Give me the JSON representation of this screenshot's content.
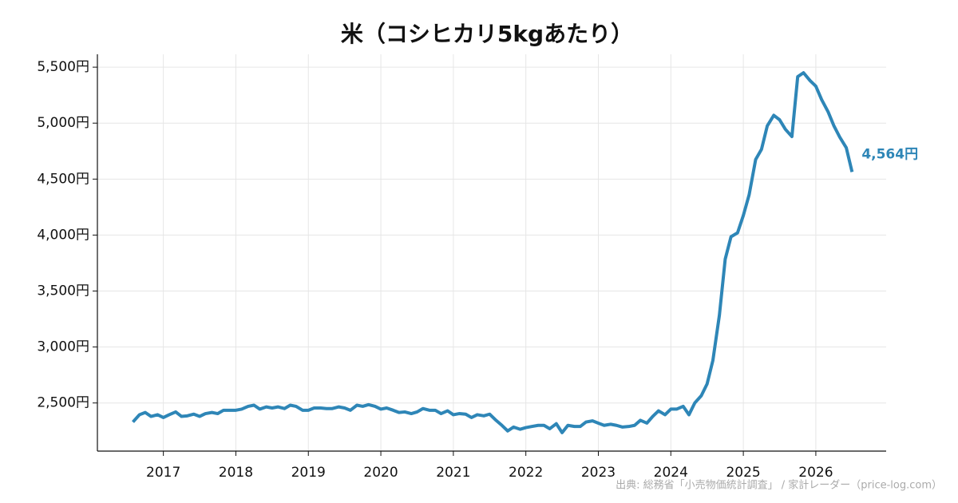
{
  "chart_data": {
    "type": "line",
    "title": "米（コシヒカリ5kgあたり）",
    "source": "出典: 総務省「小売物価統計調査」 / 家計レーダー（price-log.com）",
    "x": [
      2016.58,
      2016.67,
      2016.75,
      2016.83,
      2016.92,
      2017.0,
      2017.08,
      2017.17,
      2017.25,
      2017.33,
      2017.42,
      2017.5,
      2017.58,
      2017.67,
      2017.75,
      2017.83,
      2017.92,
      2018.0,
      2018.08,
      2018.17,
      2018.25,
      2018.33,
      2018.42,
      2018.5,
      2018.58,
      2018.67,
      2018.75,
      2018.83,
      2018.92,
      2019.0,
      2019.08,
      2019.17,
      2019.25,
      2019.33,
      2019.42,
      2019.5,
      2019.58,
      2019.67,
      2019.75,
      2019.83,
      2019.92,
      2020.0,
      2020.08,
      2020.17,
      2020.25,
      2020.33,
      2020.42,
      2020.5,
      2020.58,
      2020.67,
      2020.75,
      2020.83,
      2020.92,
      2021.0,
      2021.08,
      2021.17,
      2021.25,
      2021.33,
      2021.42,
      2021.5,
      2021.58,
      2021.67,
      2021.75,
      2021.83,
      2021.92,
      2022.0,
      2022.08,
      2022.17,
      2022.25,
      2022.33,
      2022.42,
      2022.5,
      2022.58,
      2022.67,
      2022.75,
      2022.83,
      2022.92,
      2023.0,
      2023.08,
      2023.17,
      2023.25,
      2023.33,
      2023.42,
      2023.5,
      2023.58,
      2023.67,
      2023.75,
      2023.83,
      2023.92,
      2024.0,
      2024.08,
      2024.17,
      2024.25,
      2024.33,
      2024.42,
      2024.5,
      2024.58,
      2024.67,
      2024.75,
      2024.83,
      2024.92,
      2025.0,
      2025.08,
      2025.17,
      2025.25,
      2025.33,
      2025.42,
      2025.5,
      2025.58,
      2025.67,
      2025.75,
      2025.83,
      2025.92,
      2026.0,
      2026.08,
      2026.17,
      2026.25,
      2026.33,
      2026.42,
      2026.5
    ],
    "series": [
      {
        "color": "#2e86b7",
        "values": [
          2330,
          2395,
          2415,
          2380,
          2395,
          2370,
          2395,
          2420,
          2380,
          2385,
          2400,
          2380,
          2405,
          2415,
          2405,
          2435,
          2435,
          2435,
          2445,
          2470,
          2480,
          2445,
          2465,
          2455,
          2465,
          2450,
          2480,
          2470,
          2435,
          2435,
          2455,
          2455,
          2450,
          2450,
          2465,
          2455,
          2435,
          2480,
          2470,
          2485,
          2470,
          2445,
          2455,
          2435,
          2415,
          2420,
          2405,
          2420,
          2450,
          2435,
          2435,
          2405,
          2430,
          2395,
          2405,
          2400,
          2370,
          2395,
          2385,
          2400,
          2350,
          2300,
          2250,
          2285,
          2265,
          2280,
          2290,
          2300,
          2300,
          2270,
          2315,
          2235,
          2300,
          2290,
          2290,
          2330,
          2340,
          2320,
          2300,
          2310,
          2300,
          2285,
          2290,
          2300,
          2345,
          2320,
          2380,
          2430,
          2395,
          2445,
          2445,
          2470,
          2395,
          2500,
          2565,
          2670,
          2880,
          3285,
          3785,
          3985,
          4020,
          4175,
          4360,
          4675,
          4765,
          4975,
          5070,
          5030,
          4945,
          4880,
          5415,
          5450,
          5380,
          5330,
          5210,
          5100,
          4975,
          4875,
          4780,
          4564
        ],
        "value_labels": [
          null,
          null,
          null,
          null,
          null,
          null,
          null,
          null,
          null,
          null,
          null,
          null,
          null,
          null,
          null,
          null,
          null,
          null,
          null,
          null,
          null,
          null,
          null,
          null,
          null,
          null,
          null,
          null,
          null,
          null,
          null,
          null,
          null,
          null,
          null,
          null,
          null,
          null,
          null,
          null,
          null,
          null,
          null,
          null,
          null,
          null,
          null,
          null,
          null,
          null,
          null,
          null,
          null,
          null,
          null,
          null,
          null,
          null,
          null,
          null,
          null,
          null,
          null,
          null,
          null,
          null,
          null,
          null,
          null,
          null,
          null,
          null,
          null,
          null,
          null,
          null,
          null,
          null,
          null,
          null,
          null,
          null,
          null,
          null,
          null,
          null,
          null,
          null,
          null,
          null,
          null,
          null,
          null,
          null,
          null,
          null,
          null,
          null,
          null,
          null,
          null,
          null,
          null,
          null,
          null,
          null,
          null,
          null,
          null,
          null,
          null,
          null,
          null,
          null,
          null,
          null,
          null,
          null,
          null,
          "4,564円"
        ]
      }
    ],
    "xlim": [
      2016.09,
      2026.97
    ],
    "xticks": [
      2017,
      2018,
      2019,
      2020,
      2021,
      2022,
      2023,
      2024,
      2025,
      2026
    ],
    "ylim": [
      2070,
      5615
    ],
    "yticks": [
      {
        "value": 2500,
        "label": "2,500円"
      },
      {
        "value": 3000,
        "label": "3,000円"
      },
      {
        "value": 3500,
        "label": "3,500円"
      },
      {
        "value": 4000,
        "label": "4,000円"
      },
      {
        "value": 4500,
        "label": "4,500円"
      },
      {
        "value": 5000,
        "label": "5,000円"
      },
      {
        "value": 5500,
        "label": "5,500円"
      }
    ],
    "grid": true
  }
}
